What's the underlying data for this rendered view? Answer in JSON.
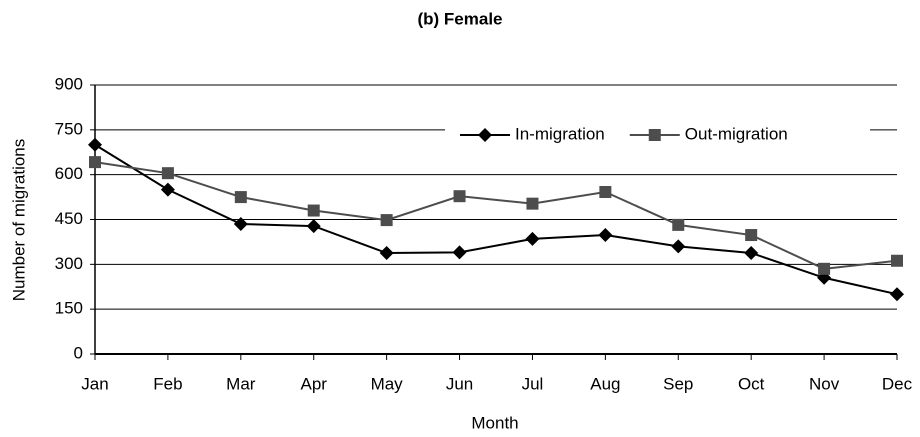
{
  "chart_data": {
    "type": "line",
    "title": "(b) Female",
    "x_label": "Month",
    "y_label": "Number of migrations",
    "categories": [
      "Jan",
      "Feb",
      "Mar",
      "Apr",
      "May",
      "Jun",
      "Jul",
      "Aug",
      "Sep",
      "Oct",
      "Nov",
      "Dec"
    ],
    "series": [
      {
        "name": "In-migration",
        "color": "#000000",
        "marker": "diamond",
        "values": [
          700,
          550,
          435,
          428,
          338,
          340,
          385,
          398,
          360,
          338,
          255,
          200
        ]
      },
      {
        "name": "Out-migration",
        "color": "#4d4d4d",
        "marker": "square",
        "values": [
          642,
          605,
          525,
          480,
          448,
          528,
          503,
          542,
          432,
          398,
          285,
          312
        ]
      }
    ],
    "ylim": [
      0,
      900
    ],
    "yticks": [
      0,
      150,
      300,
      450,
      600,
      750,
      900
    ],
    "grid": true,
    "legend": "upper right"
  }
}
